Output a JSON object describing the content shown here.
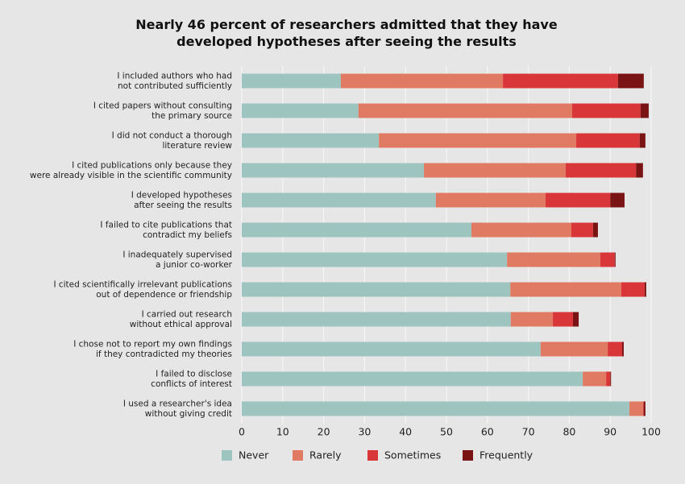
{
  "chart_data": {
    "type": "stacked-bar-horizontal",
    "title": "Nearly 46 percent of researchers admitted that they have developed hypotheses after seeing the results",
    "categories": [
      [
        "I included authors who had",
        "not contributed sufficiently"
      ],
      [
        "I cited papers without consulting",
        "the primary source"
      ],
      [
        "I did not conduct a thorough",
        "literature review"
      ],
      [
        "I cited publications only because they",
        "were already visible in the scientific community"
      ],
      [
        "I developed hypotheses",
        "after seeing the results"
      ],
      [
        "I failed to cite publications that",
        "contradict my beliefs"
      ],
      [
        "I inadequately supervised",
        "a junior co-worker"
      ],
      [
        "I cited scientifically irrelevant publications",
        "out of dependence or friendship"
      ],
      [
        "I carried out research",
        "without ethical approval"
      ],
      [
        "I chose not to report my own findings",
        "if they contradicted my theories"
      ],
      [
        "I failed to disclose",
        "conflicts of interest"
      ],
      [
        "I used a researcher's idea",
        "without giving credit"
      ]
    ],
    "series": [
      {
        "name": "Never",
        "color": "#9dc4bf",
        "values": [
          24.2,
          28.5,
          33.5,
          44.5,
          47.4,
          56.1,
          64.8,
          65.6,
          65.7,
          73.0,
          83.3,
          94.7
        ]
      },
      {
        "name": "Rarely",
        "color": "#e07a62",
        "values": [
          39.6,
          52.2,
          48.2,
          34.6,
          26.8,
          24.4,
          22.8,
          27.1,
          10.3,
          16.4,
          5.7,
          3.3
        ]
      },
      {
        "name": "Sometimes",
        "color": "#d9363a",
        "values": [
          28.1,
          16.7,
          15.5,
          17.2,
          15.8,
          5.3,
          3.5,
          5.7,
          4.9,
          3.5,
          1.0,
          0.2
        ]
      },
      {
        "name": "Frequently",
        "color": "#7a1414",
        "values": [
          6.3,
          2.0,
          1.4,
          1.7,
          3.5,
          1.2,
          0.2,
          0.4,
          1.4,
          0.4,
          0.2,
          0.4
        ]
      }
    ],
    "xlim": [
      0,
      100
    ],
    "xticks": [
      0,
      10,
      20,
      30,
      40,
      50,
      60,
      70,
      80,
      90,
      100
    ],
    "grid": true
  }
}
